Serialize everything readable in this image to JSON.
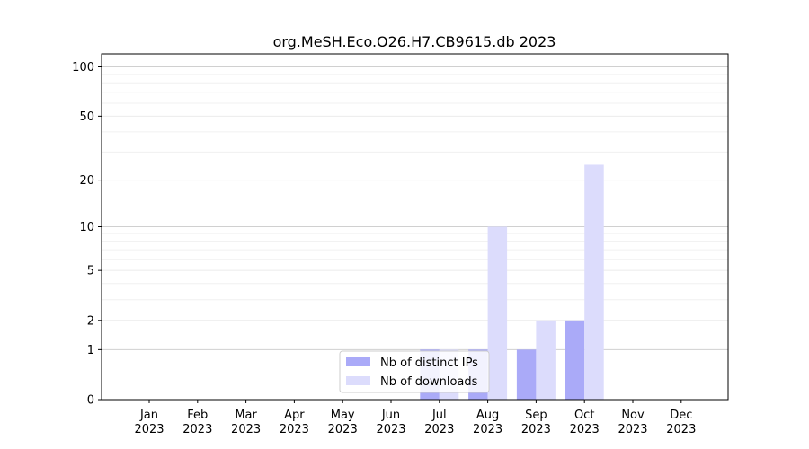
{
  "chart_data": {
    "type": "bar",
    "title": "org.MeSH.Eco.O26.H7.CB9615.db 2023",
    "xlabel": "",
    "ylabel": "",
    "yscale": "log(1+y)",
    "ylim": [
      0,
      120
    ],
    "y_ticks": [
      0,
      1,
      2,
      5,
      10,
      20,
      50,
      100
    ],
    "y_tick_labels": [
      "0",
      "1",
      "2",
      "5",
      "10",
      "20",
      "50",
      "100"
    ],
    "categories": [
      {
        "month": "Jan",
        "year": "2023"
      },
      {
        "month": "Feb",
        "year": "2023"
      },
      {
        "month": "Mar",
        "year": "2023"
      },
      {
        "month": "Apr",
        "year": "2023"
      },
      {
        "month": "May",
        "year": "2023"
      },
      {
        "month": "Jun",
        "year": "2023"
      },
      {
        "month": "Jul",
        "year": "2023"
      },
      {
        "month": "Aug",
        "year": "2023"
      },
      {
        "month": "Sep",
        "year": "2023"
      },
      {
        "month": "Oct",
        "year": "2023"
      },
      {
        "month": "Nov",
        "year": "2023"
      },
      {
        "month": "Dec",
        "year": "2023"
      }
    ],
    "series": [
      {
        "name": "Nb of distinct IPs",
        "color": "#aaaaf8",
        "values": [
          0,
          0,
          0,
          0,
          0,
          0,
          1,
          1,
          1,
          2,
          0,
          0
        ]
      },
      {
        "name": "Nb of downloads",
        "color": "#dcdcfc",
        "values": [
          0,
          0,
          0,
          0,
          0,
          0,
          1,
          10,
          2,
          25,
          0,
          0
        ]
      }
    ],
    "grid": "horizontal",
    "legend_position": "lower-center"
  }
}
